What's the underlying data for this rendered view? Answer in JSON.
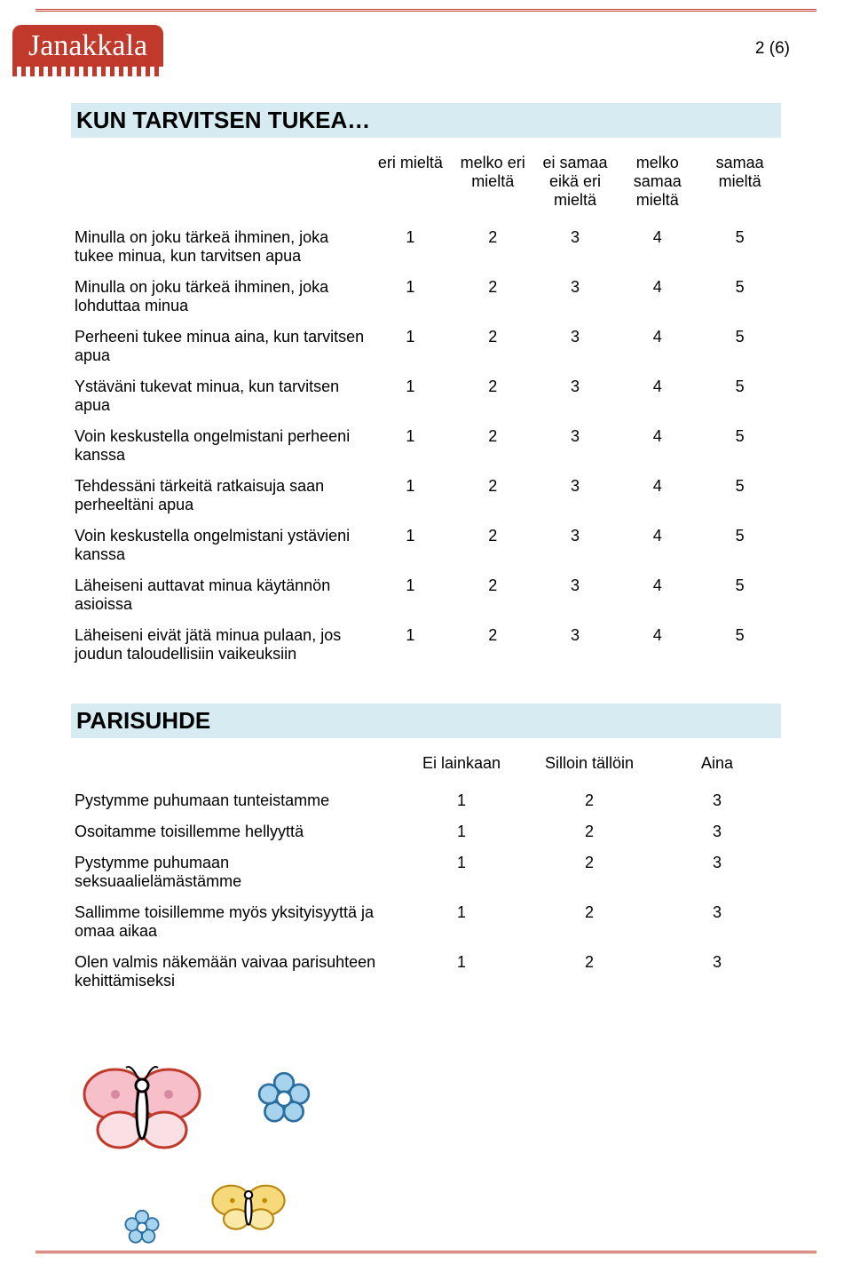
{
  "logo_text": "Janakkala",
  "page_number": "2 (6)",
  "section1": {
    "title": "KUN TARVITSEN TUKEA…",
    "headers": [
      "eri mieltä",
      "melko eri mieltä",
      "ei samaa eikä eri mieltä",
      "melko samaa mieltä",
      "samaa mieltä"
    ],
    "rows": [
      {
        "q": "Minulla on joku tärkeä ihminen, joka tukee minua, kun tarvitsen apua",
        "v": [
          "1",
          "2",
          "3",
          "4",
          "5"
        ]
      },
      {
        "q": "Minulla on joku tärkeä ihminen, joka lohduttaa minua",
        "v": [
          "1",
          "2",
          "3",
          "4",
          "5"
        ]
      },
      {
        "q": "Perheeni tukee minua aina, kun tarvitsen apua",
        "v": [
          "1",
          "2",
          "3",
          "4",
          "5"
        ]
      },
      {
        "q": "Ystäväni tukevat minua, kun tarvitsen apua",
        "v": [
          "1",
          "2",
          "3",
          "4",
          "5"
        ]
      },
      {
        "q": "Voin keskustella ongelmistani perheeni kanssa",
        "v": [
          "1",
          "2",
          "3",
          "4",
          "5"
        ]
      },
      {
        "q": "Tehdessäni tärkeitä ratkaisuja saan perheeltäni apua",
        "v": [
          "1",
          "2",
          "3",
          "4",
          "5"
        ]
      },
      {
        "q": "Voin keskustella ongelmistani ystävieni kanssa",
        "v": [
          "1",
          "2",
          "3",
          "4",
          "5"
        ]
      },
      {
        "q": "Läheiseni auttavat minua käytännön asioissa",
        "v": [
          "1",
          "2",
          "3",
          "4",
          "5"
        ]
      },
      {
        "q": "Läheiseni eivät jätä minua pulaan, jos joudun taloudellisiin vaikeuksiin",
        "v": [
          "1",
          "2",
          "3",
          "4",
          "5"
        ]
      }
    ]
  },
  "section2": {
    "title": "PARISUHDE",
    "headers": [
      "Ei lainkaan",
      "Silloin tällöin",
      "Aina"
    ],
    "rows": [
      {
        "q": "Pystymme puhumaan tunteistamme",
        "v": [
          "1",
          "2",
          "3"
        ]
      },
      {
        "q": "Osoitamme toisillemme hellyyttä",
        "v": [
          "1",
          "2",
          "3"
        ]
      },
      {
        "q": "Pystymme puhumaan seksuaalielämästämme",
        "v": [
          "1",
          "2",
          "3"
        ]
      },
      {
        "q": "Sallimme toisillemme myös yksityisyyttä ja omaa aikaa",
        "v": [
          "1",
          "2",
          "3"
        ]
      },
      {
        "q": "Olen valmis näkemään vaivaa parisuhteen kehittämiseksi",
        "v": [
          "1",
          "2",
          "3"
        ]
      }
    ]
  },
  "colors": {
    "brand_red": "#c0392b",
    "section_bg": "#d6ecf2",
    "text": "#000000",
    "page_bg": "#ffffff"
  }
}
